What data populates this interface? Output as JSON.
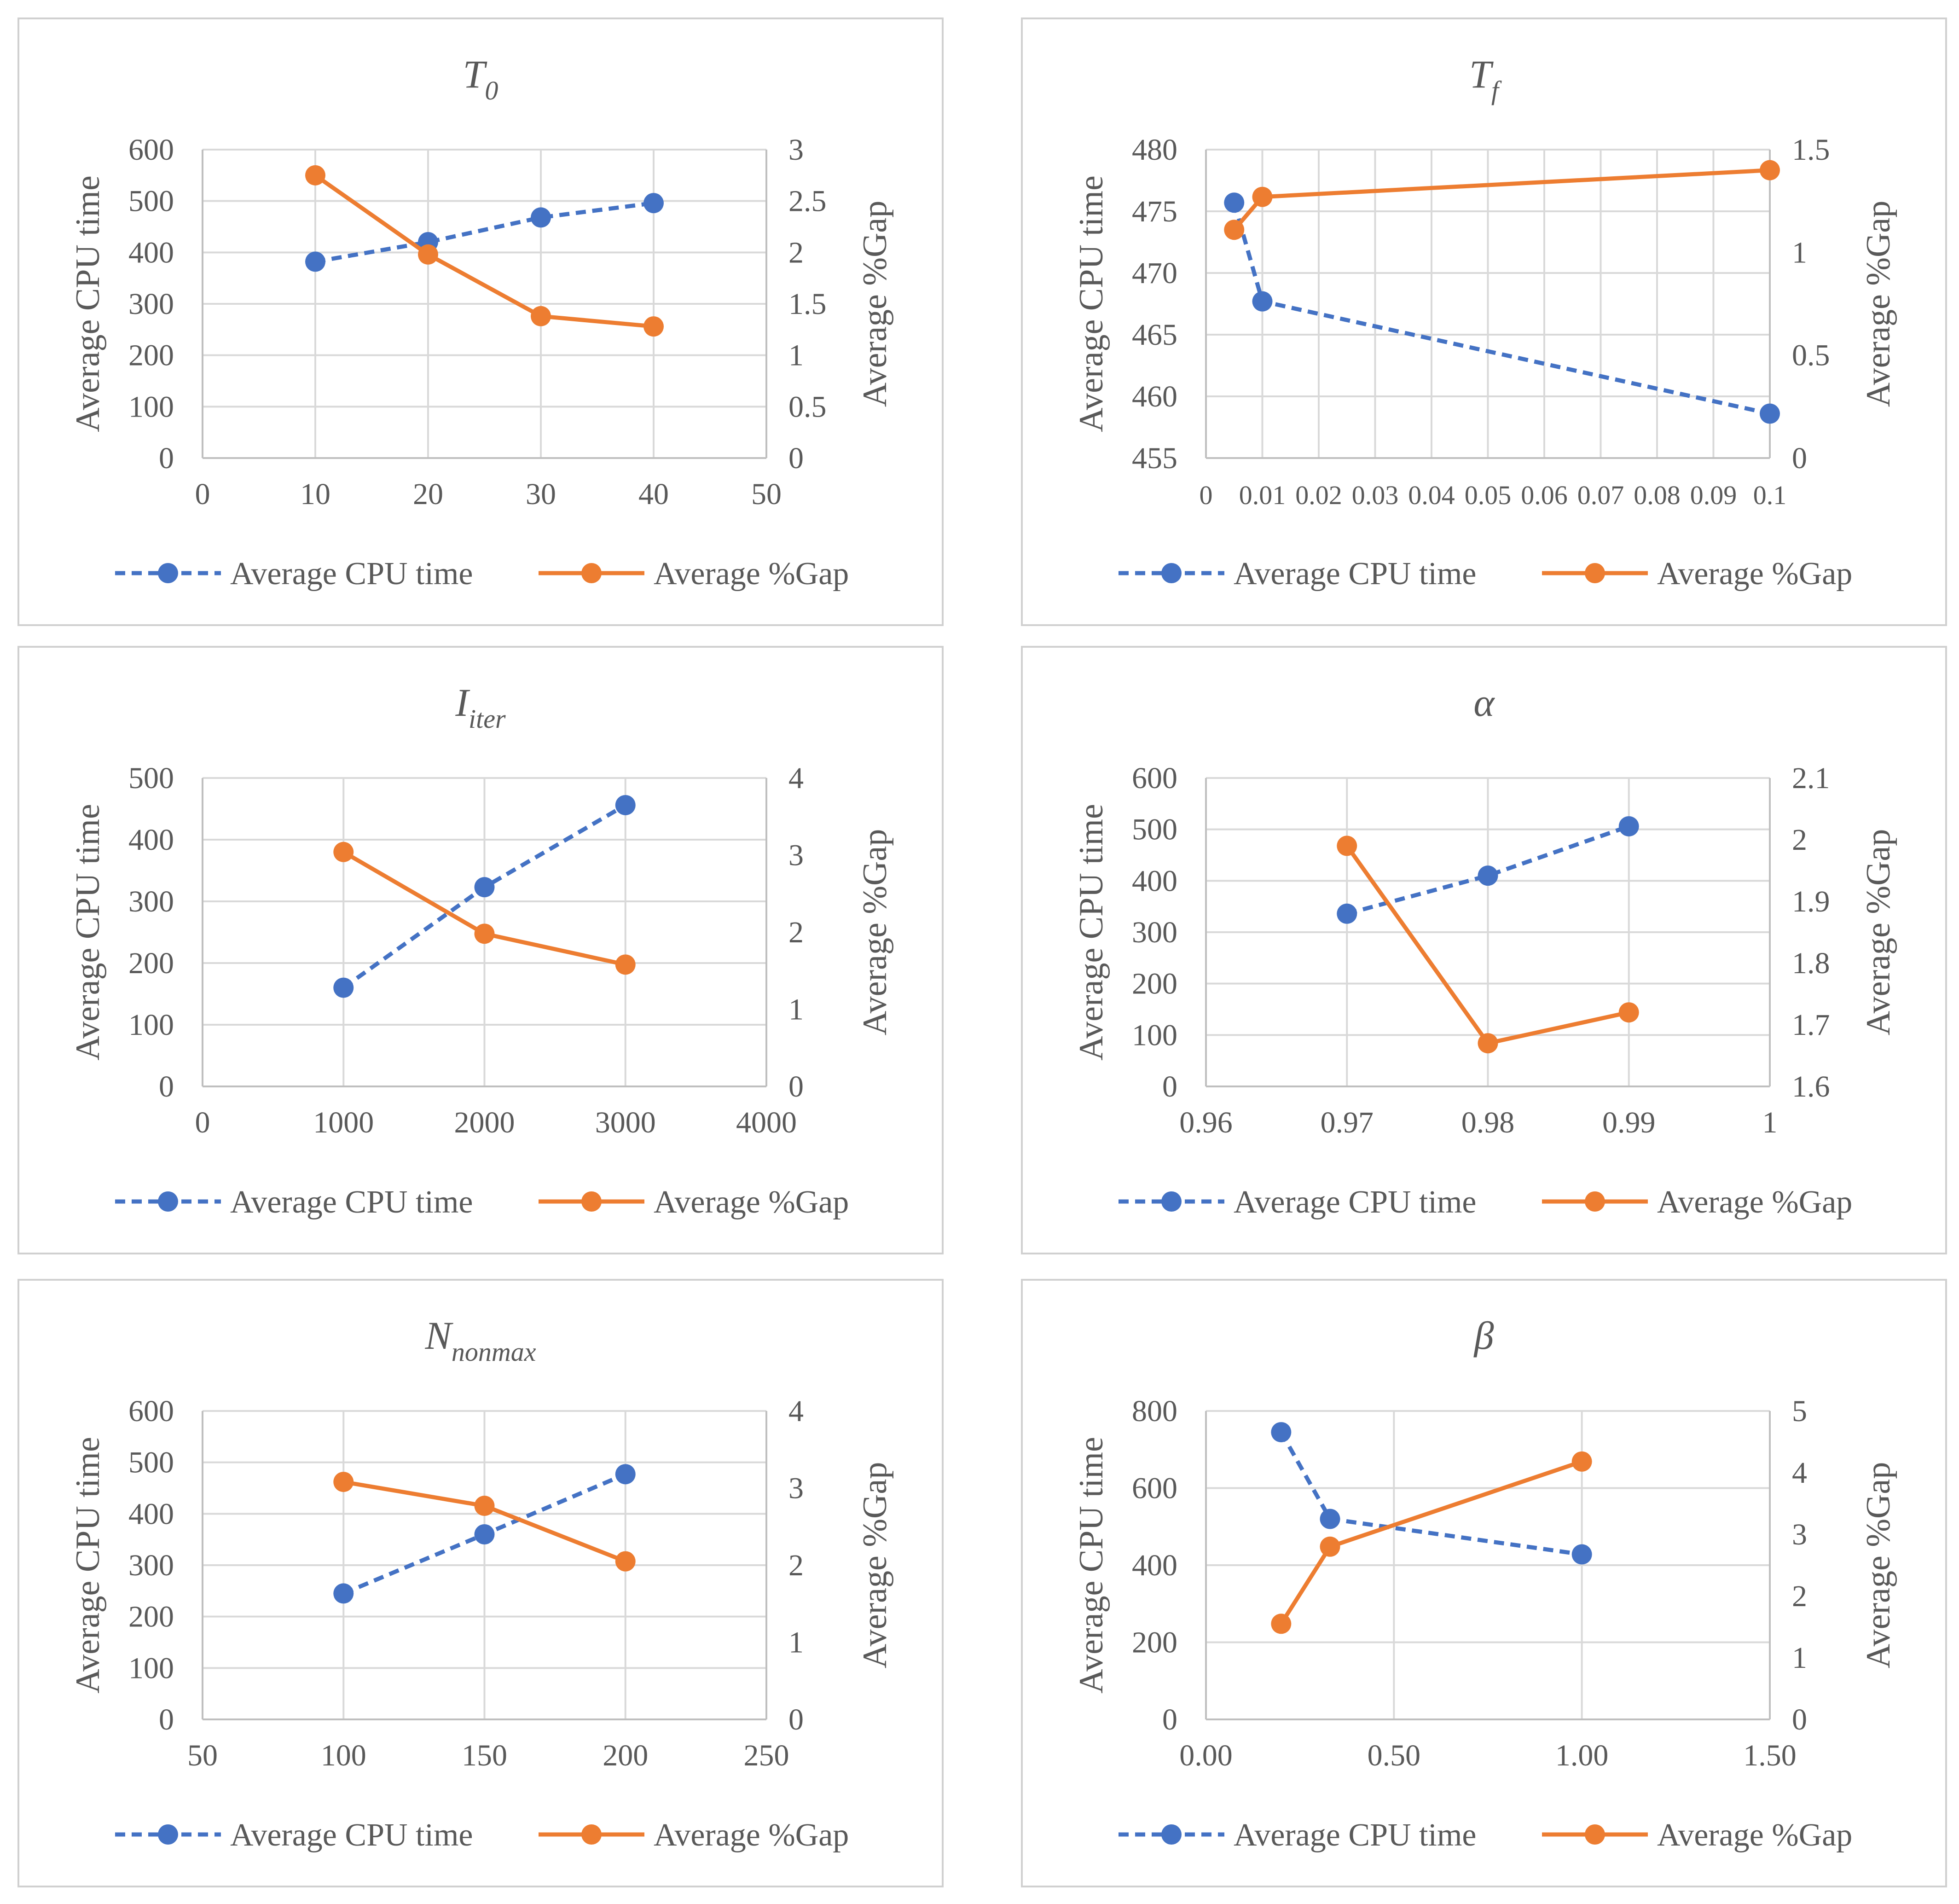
{
  "colors": {
    "cpu": "#4472C4",
    "gap": "#ED7D31",
    "grid": "#D9D9D9",
    "axis": "#BFBFBF",
    "text": "#595959",
    "border": "#D0D0D0"
  },
  "chart_data": [
    {
      "type": "line",
      "title": "T0",
      "title_base": "T",
      "title_sub": "0",
      "ylabel": "Average CPU time",
      "y2label": "Average %Gap",
      "xlim": [
        0,
        50
      ],
      "xticks": [
        0,
        10,
        20,
        30,
        40,
        50
      ],
      "xtick_labels": [
        "0",
        "10",
        "20",
        "30",
        "40",
        "50"
      ],
      "ylim": [
        0,
        600
      ],
      "yticks": [
        0,
        100,
        200,
        300,
        400,
        500,
        600
      ],
      "ytick_labels": [
        "0",
        "100",
        "200",
        "300",
        "400",
        "500",
        "600"
      ],
      "y2lim": [
        0,
        3
      ],
      "y2ticks": [
        0,
        0.5,
        1,
        1.5,
        2,
        2.5,
        3
      ],
      "y2tick_labels": [
        "0",
        "0.5",
        "1",
        "1.5",
        "2",
        "2.5",
        "3"
      ],
      "grid": true,
      "legend": "bottom",
      "series": [
        {
          "name": "Average CPU time",
          "axis": "left",
          "style": "dashed",
          "x": [
            10,
            20,
            30,
            40
          ],
          "values": [
            382,
            420,
            468,
            496
          ]
        },
        {
          "name": "Average %Gap",
          "axis": "right",
          "style": "solid",
          "x": [
            10,
            20,
            30,
            40
          ],
          "values": [
            2.75,
            1.98,
            1.38,
            1.28
          ]
        }
      ]
    },
    {
      "type": "line",
      "title": "Tf",
      "title_base": "T",
      "title_sub": "f",
      "ylabel": "Average CPU time",
      "y2label": "Average %Gap",
      "xlim": [
        0,
        0.1
      ],
      "xticks": [
        0,
        0.01,
        0.02,
        0.03,
        0.04,
        0.05,
        0.06,
        0.07,
        0.08,
        0.09,
        0.1
      ],
      "xtick_labels": [
        "0",
        "0.01",
        "0.02",
        "0.03",
        "0.04",
        "0.05",
        "0.06",
        "0.07",
        "0.08",
        "0.09",
        "0.1"
      ],
      "ylim": [
        455,
        480
      ],
      "yticks": [
        455,
        460,
        465,
        470,
        475,
        480
      ],
      "ytick_labels": [
        "455",
        "460",
        "465",
        "470",
        "475",
        "480"
      ],
      "y2lim": [
        0,
        1.5
      ],
      "y2ticks": [
        0,
        0.5,
        1,
        1.5
      ],
      "y2tick_labels": [
        "0",
        "0.5",
        "1",
        "1.5"
      ],
      "grid": true,
      "legend": "bottom",
      "series": [
        {
          "name": "Average CPU time",
          "axis": "left",
          "style": "dashed",
          "x": [
            0.005,
            0.01,
            0.1
          ],
          "values": [
            475.7,
            467.7,
            458.6
          ]
        },
        {
          "name": "Average %Gap",
          "axis": "right",
          "style": "solid",
          "x": [
            0.005,
            0.01,
            0.1
          ],
          "values": [
            1.11,
            1.27,
            1.4
          ]
        }
      ]
    },
    {
      "type": "line",
      "title": "Iiter",
      "title_base": "I",
      "title_sub": "iter",
      "ylabel": "Average CPU time",
      "y2label": "Average %Gap",
      "xlim": [
        0,
        4000
      ],
      "xticks": [
        0,
        1000,
        2000,
        3000,
        4000
      ],
      "xtick_labels": [
        "0",
        "1000",
        "2000",
        "3000",
        "4000"
      ],
      "ylim": [
        0,
        500
      ],
      "yticks": [
        0,
        100,
        200,
        300,
        400,
        500
      ],
      "ytick_labels": [
        "0",
        "100",
        "200",
        "300",
        "400",
        "500"
      ],
      "y2lim": [
        0,
        4
      ],
      "y2ticks": [
        0,
        1,
        2,
        3,
        4
      ],
      "y2tick_labels": [
        "0",
        "1",
        "2",
        "3",
        "4"
      ],
      "grid": true,
      "legend": "bottom",
      "series": [
        {
          "name": "Average CPU time",
          "axis": "left",
          "style": "dashed",
          "x": [
            1000,
            2000,
            3000
          ],
          "values": [
            160,
            323,
            456
          ]
        },
        {
          "name": "Average %Gap",
          "axis": "right",
          "style": "solid",
          "x": [
            1000,
            2000,
            3000
          ],
          "values": [
            3.04,
            1.98,
            1.58
          ]
        }
      ]
    },
    {
      "type": "line",
      "title": "α",
      "title_base": "α",
      "title_sub": "",
      "ylabel": "Average CPU time",
      "y2label": "Average %Gap",
      "xlim": [
        0.96,
        1
      ],
      "xticks": [
        0.96,
        0.97,
        0.98,
        0.99,
        1
      ],
      "xtick_labels": [
        "0.96",
        "0.97",
        "0.98",
        "0.99",
        "1"
      ],
      "ylim": [
        0,
        600
      ],
      "yticks": [
        0,
        100,
        200,
        300,
        400,
        500,
        600
      ],
      "ytick_labels": [
        "0",
        "100",
        "200",
        "300",
        "400",
        "500",
        "600"
      ],
      "y2lim": [
        1.6,
        2.1
      ],
      "y2ticks": [
        1.6,
        1.7,
        1.8,
        1.9,
        2,
        2.1
      ],
      "y2tick_labels": [
        "1.6",
        "1.7",
        "1.8",
        "1.9",
        "2",
        "2.1"
      ],
      "grid": true,
      "legend": "bottom",
      "series": [
        {
          "name": "Average CPU time",
          "axis": "left",
          "style": "dashed",
          "x": [
            0.97,
            0.98,
            0.99
          ],
          "values": [
            336,
            410,
            506
          ]
        },
        {
          "name": "Average %Gap",
          "axis": "right",
          "style": "solid",
          "x": [
            0.97,
            0.98,
            0.99
          ],
          "values": [
            1.99,
            1.67,
            1.72
          ]
        }
      ]
    },
    {
      "type": "line",
      "title": "Nnonmax",
      "title_base": "N",
      "title_sub": "nonmax",
      "ylabel": "Average CPU time",
      "y2label": "Average %Gap",
      "xlim": [
        50,
        250
      ],
      "xticks": [
        50,
        100,
        150,
        200,
        250
      ],
      "xtick_labels": [
        "50",
        "100",
        "150",
        "200",
        "250"
      ],
      "ylim": [
        0,
        600
      ],
      "yticks": [
        0,
        100,
        200,
        300,
        400,
        500,
        600
      ],
      "ytick_labels": [
        "0",
        "100",
        "200",
        "300",
        "400",
        "500",
        "600"
      ],
      "y2lim": [
        0,
        4
      ],
      "y2ticks": [
        0,
        1,
        2,
        3,
        4
      ],
      "y2tick_labels": [
        "0",
        "1",
        "2",
        "3",
        "4"
      ],
      "grid": true,
      "legend": "bottom",
      "series": [
        {
          "name": "Average CPU time",
          "axis": "left",
          "style": "dashed",
          "x": [
            100,
            150,
            200
          ],
          "values": [
            245,
            360,
            477
          ]
        },
        {
          "name": "Average %Gap",
          "axis": "right",
          "style": "solid",
          "x": [
            100,
            150,
            200
          ],
          "values": [
            3.08,
            2.77,
            2.05
          ]
        }
      ]
    },
    {
      "type": "line",
      "title": "β",
      "title_base": "β",
      "title_sub": "",
      "ylabel": "Average CPU time",
      "y2label": "Average %Gap",
      "xlim": [
        0,
        1.5
      ],
      "xticks": [
        0,
        0.5,
        1,
        1.5
      ],
      "xtick_labels": [
        "0.00",
        "0.50",
        "1.00",
        "1.50"
      ],
      "ylim": [
        0,
        800
      ],
      "yticks": [
        0,
        200,
        400,
        600,
        800
      ],
      "ytick_labels": [
        "0",
        "200",
        "400",
        "600",
        "800"
      ],
      "y2lim": [
        0,
        5
      ],
      "y2ticks": [
        0,
        1,
        2,
        3,
        4,
        5
      ],
      "y2tick_labels": [
        "0",
        "1",
        "2",
        "3",
        "4",
        "5"
      ],
      "grid": true,
      "legend": "bottom",
      "series": [
        {
          "name": "Average CPU time",
          "axis": "left",
          "style": "dashed",
          "x": [
            0.2,
            0.33,
            1
          ],
          "values": [
            745,
            520,
            428
          ]
        },
        {
          "name": "Average %Gap",
          "axis": "right",
          "style": "solid",
          "x": [
            0.2,
            0.33,
            1
          ],
          "values": [
            1.55,
            2.8,
            4.18
          ]
        }
      ]
    }
  ]
}
